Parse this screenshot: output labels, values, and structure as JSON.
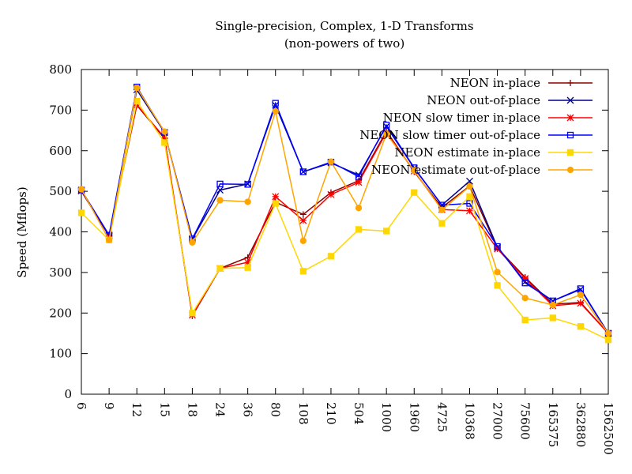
{
  "chart_data": {
    "type": "line",
    "title": "Single-precision, Complex, 1-D Transforms",
    "subtitle": "(non-powers of two)",
    "xlabel": "",
    "ylabel": "Speed (Mflops)",
    "ylim": [
      0,
      800
    ],
    "yticks": [
      0,
      100,
      200,
      300,
      400,
      500,
      600,
      700,
      800
    ],
    "categories": [
      "6",
      "9",
      "12",
      "15",
      "18",
      "24",
      "36",
      "80",
      "108",
      "210",
      "504",
      "1000",
      "1960",
      "4725",
      "10368",
      "27000",
      "75600",
      "165375",
      "362880",
      "1562500"
    ],
    "grid": false,
    "legend_position": "top-right",
    "series": [
      {
        "name": "NEON in-place",
        "color": "#8b0000",
        "marker": "plus",
        "values": [
          500,
          390,
          712,
          630,
          193,
          310,
          337,
          473,
          443,
          497,
          526,
          648,
          548,
          460,
          513,
          360,
          288,
          222,
          226,
          150
        ]
      },
      {
        "name": "NEON out-of-place",
        "color": "#00008b",
        "marker": "cross",
        "values": [
          501,
          390,
          750,
          645,
          382,
          503,
          518,
          712,
          548,
          570,
          540,
          660,
          557,
          466,
          525,
          362,
          277,
          230,
          258,
          150
        ]
      },
      {
        "name": "NEON slow timer in-place",
        "color": "#ff0000",
        "marker": "star",
        "values": [
          502,
          392,
          713,
          632,
          195,
          310,
          325,
          487,
          428,
          492,
          522,
          645,
          550,
          455,
          452,
          358,
          285,
          218,
          224,
          150
        ]
      },
      {
        "name": "NEON slow timer out-of-place",
        "color": "#0000ff",
        "marker": "box",
        "values": [
          503,
          392,
          757,
          645,
          383,
          518,
          517,
          717,
          548,
          572,
          536,
          663,
          558,
          466,
          470,
          364,
          274,
          230,
          260,
          150
        ]
      },
      {
        "name": "NEON estimate in-place",
        "color": "#ffd700",
        "marker": "filled-box",
        "values": [
          447,
          380,
          722,
          620,
          200,
          310,
          312,
          470,
          303,
          340,
          406,
          402,
          497,
          421,
          487,
          268,
          183,
          188,
          167,
          134
        ]
      },
      {
        "name": "NEON estimate out-of-place",
        "color": "#ffa500",
        "marker": "dot",
        "values": [
          505,
          380,
          755,
          647,
          374,
          478,
          474,
          697,
          378,
          573,
          459,
          641,
          551,
          454,
          512,
          301,
          237,
          220,
          245,
          150
        ]
      }
    ]
  }
}
